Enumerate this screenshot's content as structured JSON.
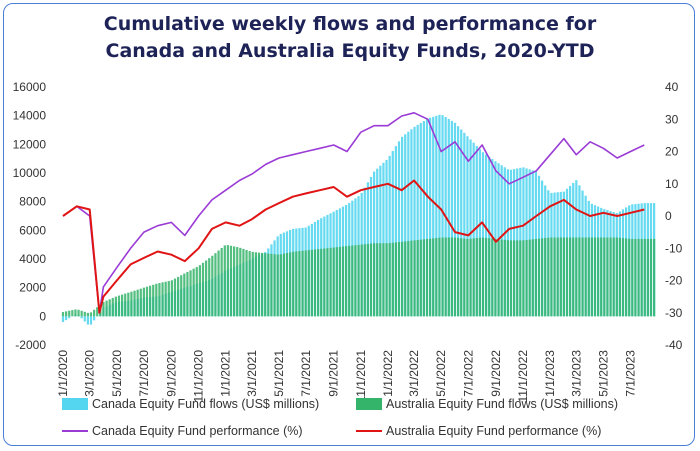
{
  "colors": {
    "canada_flows": "#55d6f0",
    "australia_flows": "#34b36a",
    "canada_perf": "#9a3bd6",
    "australia_perf": "#e01414",
    "title": "#1d2257",
    "frame": "#4a7fd6"
  },
  "chart_data": {
    "type": "bar",
    "title": "Cumulative weekly flows and performance for Canada and Australia Equity Funds, 2020-YTD",
    "title_lines": [
      "Cumulative weekly flows and performance for",
      "Canada and Australia Equity Funds, 2020-YTD"
    ],
    "x_tick_labels": [
      "1/1/2020",
      "3/1/2020",
      "5/1/2020",
      "7/1/2020",
      "9/1/2020",
      "11/1/2020",
      "1/1/2021",
      "3/1/2021",
      "5/1/2021",
      "7/1/2021",
      "9/1/2021",
      "11/1/2021",
      "1/1/2022",
      "3/1/2022",
      "5/1/2022",
      "7/1/2022",
      "9/1/2022",
      "11/1/2022",
      "1/1/2023",
      "3/1/2023",
      "5/1/2023",
      "7/1/2023"
    ],
    "y_left": {
      "ylim": [
        -2000,
        16000
      ],
      "ticks": [
        "-2000",
        "0",
        "2000",
        "4000",
        "6000",
        "8000",
        "10000",
        "12000",
        "14000",
        "16000"
      ]
    },
    "y_right": {
      "ylim": [
        -40,
        40
      ],
      "ticks": [
        "-40",
        "-30",
        "-20",
        "-10",
        "0",
        "10",
        "20",
        "30",
        "40"
      ]
    },
    "legend_placement": "bottom",
    "series": [
      {
        "name": "Canada Equity Fund flows (US$ millions)",
        "kind": "bar",
        "axis": "left",
        "x": [
          "1/1/2020",
          "2/1/2020",
          "3/1/2020",
          "4/1/2020",
          "5/1/2020",
          "6/1/2020",
          "7/1/2020",
          "8/1/2020",
          "9/1/2020",
          "10/1/2020",
          "11/1/2020",
          "12/1/2020",
          "1/1/2021",
          "2/1/2021",
          "3/1/2021",
          "4/1/2021",
          "5/1/2021",
          "6/1/2021",
          "7/1/2021",
          "8/1/2021",
          "9/1/2021",
          "10/1/2021",
          "11/1/2021",
          "12/1/2021",
          "1/1/2022",
          "2/1/2022",
          "3/1/2022",
          "4/1/2022",
          "5/1/2022",
          "6/1/2022",
          "7/1/2022",
          "8/1/2022",
          "9/1/2022",
          "10/1/2022",
          "11/1/2022",
          "12/1/2022",
          "1/1/2023",
          "2/1/2023",
          "3/1/2023",
          "4/1/2023",
          "5/1/2023",
          "6/1/2023",
          "7/1/2023",
          "8/1/2023"
        ],
        "values": [
          -400,
          200,
          -700,
          600,
          1000,
          1100,
          1300,
          1400,
          1700,
          2000,
          2300,
          2600,
          3200,
          3600,
          4000,
          4500,
          5700,
          6100,
          6200,
          6800,
          7300,
          7800,
          8500,
          10100,
          11000,
          12500,
          13200,
          13800,
          14100,
          13500,
          12500,
          11500,
          10800,
          10200,
          10400,
          10100,
          8600,
          8700,
          9500,
          7900,
          7500,
          7200,
          7800,
          7900
        ]
      },
      {
        "name": "Australia Equity Fund flows (US$ millions)",
        "kind": "bar",
        "axis": "left",
        "x": [
          "1/1/2020",
          "2/1/2020",
          "3/1/2020",
          "4/1/2020",
          "5/1/2020",
          "6/1/2020",
          "7/1/2020",
          "8/1/2020",
          "9/1/2020",
          "10/1/2020",
          "11/1/2020",
          "12/1/2020",
          "1/1/2021",
          "2/1/2021",
          "3/1/2021",
          "4/1/2021",
          "5/1/2021",
          "6/1/2021",
          "7/1/2021",
          "8/1/2021",
          "9/1/2021",
          "10/1/2021",
          "11/1/2021",
          "12/1/2021",
          "1/1/2022",
          "2/1/2022",
          "3/1/2022",
          "4/1/2022",
          "5/1/2022",
          "6/1/2022",
          "7/1/2022",
          "8/1/2022",
          "9/1/2022",
          "10/1/2022",
          "11/1/2022",
          "12/1/2022",
          "1/1/2023",
          "2/1/2023",
          "3/1/2023",
          "4/1/2023",
          "5/1/2023",
          "6/1/2023",
          "7/1/2023",
          "8/1/2023"
        ],
        "values": [
          300,
          500,
          200,
          1000,
          1400,
          1700,
          2000,
          2300,
          2500,
          3000,
          3500,
          4200,
          5000,
          4800,
          4500,
          4400,
          4300,
          4500,
          4600,
          4700,
          4800,
          4900,
          5000,
          5100,
          5100,
          5200,
          5300,
          5400,
          5500,
          5500,
          5400,
          5500,
          5400,
          5300,
          5300,
          5400,
          5500,
          5500,
          5500,
          5500,
          5500,
          5500,
          5400,
          5400
        ]
      },
      {
        "name": "Canada Equity Fund performance (%)",
        "kind": "line",
        "axis": "right",
        "x": [
          "1/1/2020",
          "2/1/2020",
          "3/1/2020",
          "3/23/2020",
          "4/1/2020",
          "5/1/2020",
          "6/1/2020",
          "7/1/2020",
          "8/1/2020",
          "9/1/2020",
          "10/1/2020",
          "11/1/2020",
          "12/1/2020",
          "1/1/2021",
          "2/1/2021",
          "3/1/2021",
          "4/1/2021",
          "5/1/2021",
          "6/1/2021",
          "7/1/2021",
          "8/1/2021",
          "9/1/2021",
          "10/1/2021",
          "11/1/2021",
          "12/1/2021",
          "1/1/2022",
          "2/1/2022",
          "3/1/2022",
          "4/1/2022",
          "5/1/2022",
          "6/1/2022",
          "7/1/2022",
          "8/1/2022",
          "9/1/2022",
          "10/1/2022",
          "11/1/2022",
          "12/1/2022",
          "1/1/2023",
          "2/1/2023",
          "3/1/2023",
          "4/1/2023",
          "5/1/2023",
          "6/1/2023",
          "7/1/2023",
          "8/1/2023"
        ],
        "values": [
          0,
          3,
          0,
          -30,
          -22,
          -16,
          -10,
          -5,
          -3,
          -2,
          -6,
          0,
          5,
          8,
          11,
          13,
          16,
          18,
          19,
          20,
          21,
          22,
          20,
          26,
          28,
          28,
          31,
          32,
          30,
          20,
          23,
          17,
          22,
          14,
          10,
          12,
          14,
          19,
          24,
          19,
          23,
          21,
          18,
          20,
          22
        ]
      },
      {
        "name": "Australia Equity Fund performance (%)",
        "kind": "line",
        "axis": "right",
        "x": [
          "1/1/2020",
          "2/1/2020",
          "3/1/2020",
          "3/23/2020",
          "4/1/2020",
          "5/1/2020",
          "6/1/2020",
          "7/1/2020",
          "8/1/2020",
          "9/1/2020",
          "10/1/2020",
          "11/1/2020",
          "12/1/2020",
          "1/1/2021",
          "2/1/2021",
          "3/1/2021",
          "4/1/2021",
          "5/1/2021",
          "6/1/2021",
          "7/1/2021",
          "8/1/2021",
          "9/1/2021",
          "10/1/2021",
          "11/1/2021",
          "12/1/2021",
          "1/1/2022",
          "2/1/2022",
          "3/1/2022",
          "4/1/2022",
          "5/1/2022",
          "6/1/2022",
          "7/1/2022",
          "8/1/2022",
          "9/1/2022",
          "10/1/2022",
          "11/1/2022",
          "12/1/2022",
          "1/1/2023",
          "2/1/2023",
          "3/1/2023",
          "4/1/2023",
          "5/1/2023",
          "6/1/2023",
          "7/1/2023",
          "8/1/2023"
        ],
        "values": [
          0,
          3,
          2,
          -30,
          -25,
          -20,
          -15,
          -13,
          -11,
          -12,
          -14,
          -10,
          -4,
          -2,
          -3,
          -1,
          2,
          4,
          6,
          7,
          8,
          9,
          6,
          8,
          9,
          10,
          8,
          11,
          6,
          2,
          -5,
          -6,
          -2,
          -8,
          -4,
          -3,
          0,
          3,
          5,
          2,
          0,
          1,
          0,
          1,
          2
        ]
      }
    ]
  }
}
